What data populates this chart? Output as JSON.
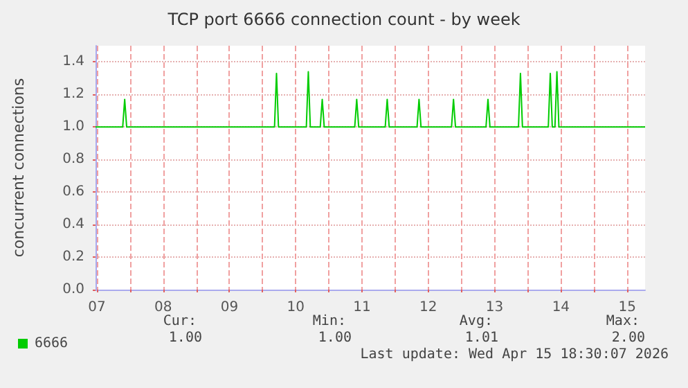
{
  "chart_data": {
    "type": "line",
    "title": "TCP port 6666 connection count - by week",
    "ylabel": "concurrent connections",
    "xlim": [
      7.48,
      15.77
    ],
    "xticks": [
      {
        "value": 7.5,
        "label": "07"
      },
      {
        "value": 8,
        "label": null
      },
      {
        "value": 8.5,
        "label": "08"
      },
      {
        "value": 9,
        "label": null
      },
      {
        "value": 9.5,
        "label": "09"
      },
      {
        "value": 10,
        "label": null
      },
      {
        "value": 10.5,
        "label": "10"
      },
      {
        "value": 11,
        "label": null
      },
      {
        "value": 11.5,
        "label": "11"
      },
      {
        "value": 12,
        "label": null
      },
      {
        "value": 12.5,
        "label": "12"
      },
      {
        "value": 13,
        "label": null
      },
      {
        "value": 13.5,
        "label": "13"
      },
      {
        "value": 14,
        "label": null
      },
      {
        "value": 14.5,
        "label": "14"
      },
      {
        "value": 15,
        "label": null
      },
      {
        "value": 15.5,
        "label": "15"
      }
    ],
    "ylim": [
      0,
      1.5
    ],
    "yticks": [
      {
        "value": 0,
        "label": "0.0"
      },
      {
        "value": 0.2,
        "label": "0.2"
      },
      {
        "value": 0.4,
        "label": "0.4"
      },
      {
        "value": 0.6,
        "label": "0.6"
      },
      {
        "value": 0.8,
        "label": "0.8"
      },
      {
        "value": 1,
        "label": "1.0"
      },
      {
        "value": 1.2,
        "label": "1.2"
      },
      {
        "value": 1.4,
        "label": "1.4"
      }
    ],
    "grid": true,
    "legend": "bottom left",
    "marker": "none",
    "line_style": "solid",
    "series": [
      {
        "name": "6666",
        "color": "#00cc00",
        "x": [
          7.48,
          7.89,
          7.92,
          7.95,
          10.18,
          10.21,
          10.24,
          10.66,
          10.69,
          10.72,
          10.87,
          10.9,
          10.93,
          11.39,
          11.42,
          11.45,
          11.85,
          11.88,
          11.91,
          12.33,
          12.36,
          12.39,
          12.85,
          12.88,
          12.91,
          13.37,
          13.4,
          13.43,
          13.86,
          13.89,
          13.92,
          14.31,
          14.34,
          14.37,
          14.41,
          14.44,
          14.47,
          15.77
        ],
        "values": [
          1,
          1,
          1.17,
          1,
          1,
          1.33,
          1,
          1,
          1.34,
          1,
          1,
          1.17,
          1,
          1,
          1.17,
          1,
          1,
          1.17,
          1,
          1,
          1.17,
          1,
          1,
          1.17,
          1,
          1,
          1.17,
          1,
          1,
          1.33,
          1,
          1,
          1.33,
          1,
          1,
          1.34,
          1,
          1
        ]
      }
    ],
    "annotations": [
      "Cur:",
      "Min:",
      "Avg:",
      "Max:",
      "1.00",
      "1.00",
      "1.01",
      "2.00",
      "Last update: Wed Apr 15 18:30:07 2026"
    ]
  }
}
